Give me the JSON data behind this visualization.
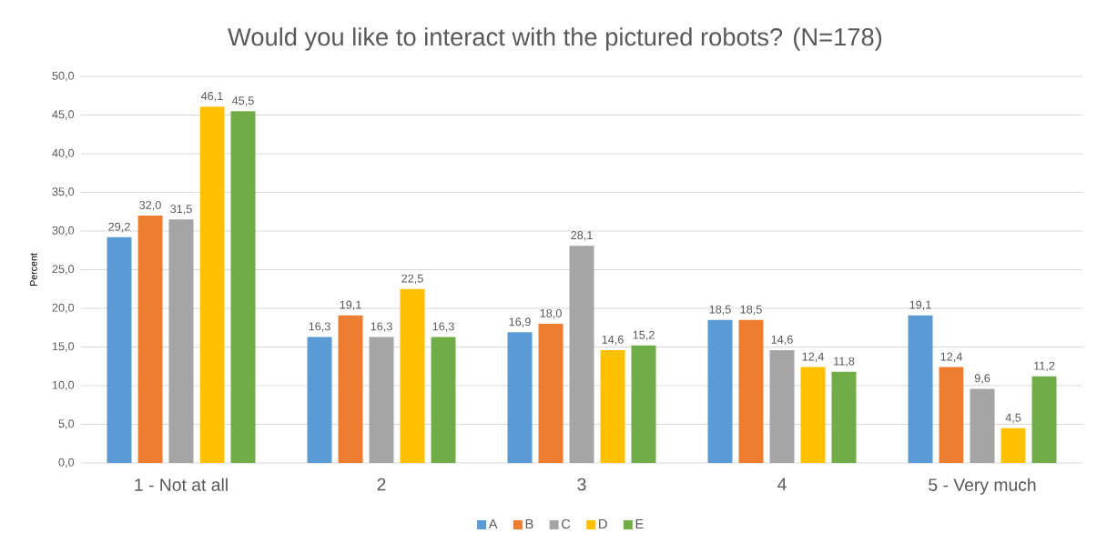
{
  "chart_data": {
    "type": "bar",
    "title": "Would you like to interact with the pictured robots? (N=178)",
    "ylabel": "Percent",
    "categories": [
      "1 - Not at all",
      "2",
      "3",
      "4",
      "5 - Very much"
    ],
    "series": [
      {
        "name": "A",
        "color": "#5b9bd5",
        "values": [
          29.2,
          16.3,
          16.9,
          18.5,
          19.1
        ],
        "value_labels": [
          "29,2",
          "16,3",
          "16,9",
          "18,5",
          "19,1"
        ]
      },
      {
        "name": "B",
        "color": "#ed7d31",
        "values": [
          32.0,
          19.1,
          18.0,
          18.5,
          12.4
        ],
        "value_labels": [
          "32,0",
          "19,1",
          "18,0",
          "18,5",
          "12,4"
        ]
      },
      {
        "name": "C",
        "color": "#a5a5a5",
        "values": [
          31.5,
          16.3,
          28.1,
          14.6,
          9.6
        ],
        "value_labels": [
          "31,5",
          "16,3",
          "28,1",
          "14,6",
          "9,6"
        ]
      },
      {
        "name": "D",
        "color": "#ffc000",
        "values": [
          46.1,
          22.5,
          14.6,
          12.4,
          4.5
        ],
        "value_labels": [
          "46,1",
          "22,5",
          "14,6",
          "12,4",
          "4,5"
        ]
      },
      {
        "name": "E",
        "color": "#70ad47",
        "values": [
          45.5,
          16.3,
          15.2,
          11.8,
          11.2
        ],
        "value_labels": [
          "45,5",
          "16,3",
          "15,2",
          "11,8",
          "11,2"
        ]
      }
    ],
    "ylim": [
      0,
      50
    ],
    "yticks": [
      {
        "value": 0,
        "label": "0,0"
      },
      {
        "value": 5,
        "label": "5,0"
      },
      {
        "value": 10,
        "label": "10,0"
      },
      {
        "value": 15,
        "label": "15,0"
      },
      {
        "value": 20,
        "label": "20,0"
      },
      {
        "value": 25,
        "label": "25,0"
      },
      {
        "value": 30,
        "label": "30,0"
      },
      {
        "value": 35,
        "label": "35,0"
      },
      {
        "value": 40,
        "label": "40,0"
      },
      {
        "value": 45,
        "label": "45,0"
      },
      {
        "value": 50,
        "label": "50,0"
      }
    ],
    "grid": "y",
    "legend": "bottom"
  }
}
